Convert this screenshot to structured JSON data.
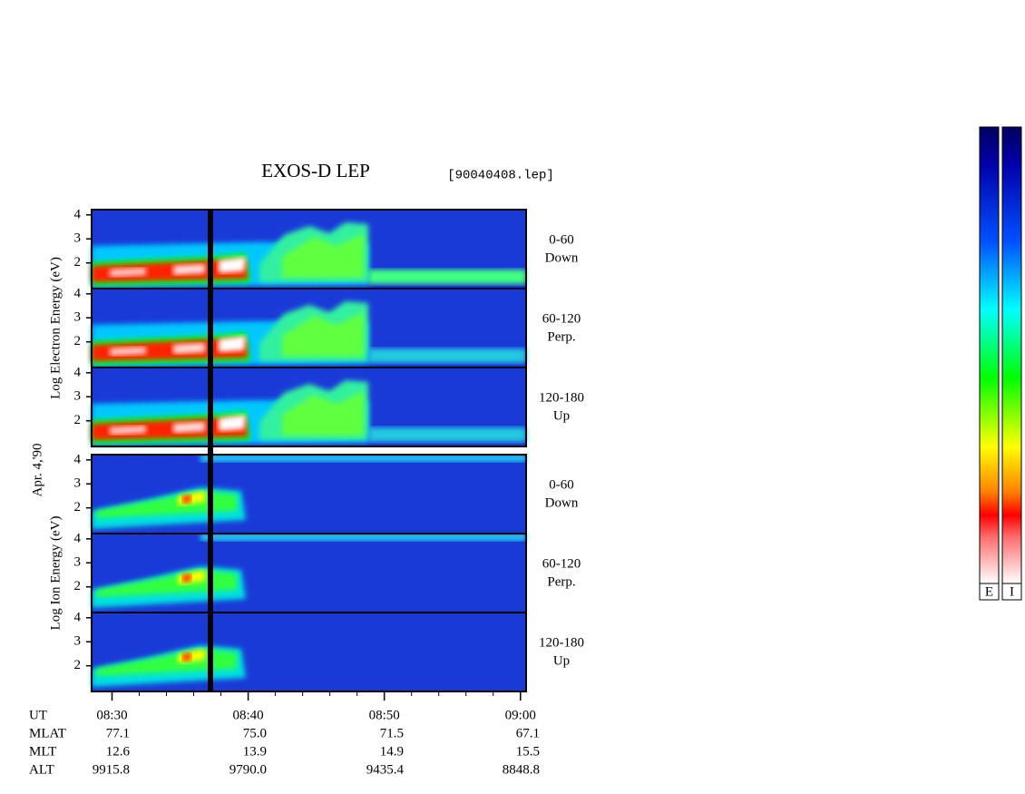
{
  "chart_data": {
    "type": "spectrogram",
    "title": "EXOS-D LEP",
    "file_label": "[90040408.lep]",
    "date_label": "Apr. 4,'90",
    "groups": [
      {
        "ylabel": "Log Electron Energy (eV)",
        "kind": "electron",
        "panels": [
          {
            "label": [
              "0-60",
              "Down"
            ]
          },
          {
            "label": [
              "60-120",
              "Perp."
            ]
          },
          {
            "label": [
              "120-180",
              "Up"
            ]
          }
        ]
      },
      {
        "ylabel": "Log Ion Energy (eV)",
        "kind": "ion",
        "panels": [
          {
            "label": [
              "0-60",
              "Down"
            ]
          },
          {
            "label": [
              "60-120",
              "Perp."
            ]
          },
          {
            "label": [
              "120-180",
              "Up"
            ]
          }
        ]
      }
    ],
    "ylim": [
      0.93,
      4.22
    ],
    "yticks": [
      2,
      3,
      4
    ],
    "xlim": [
      "08:28:30",
      "09:00:25"
    ],
    "xticks": [
      "08:30",
      "08:40",
      "08:50",
      "09:00"
    ],
    "ephemeris": {
      "ut_label": "UT",
      "rows": [
        {
          "label": "MLAT",
          "values": [
            "77.1",
            "75.0",
            "71.5",
            "67.1"
          ]
        },
        {
          "label": "MLT",
          "values": [
            "12.6",
            "13.9",
            "14.9",
            "15.5"
          ]
        },
        {
          "label": "ALT",
          "values": [
            "9915.8",
            "9790.0",
            "9435.4",
            "8848.8"
          ]
        }
      ]
    },
    "colorbars": [
      "E",
      "I"
    ]
  }
}
